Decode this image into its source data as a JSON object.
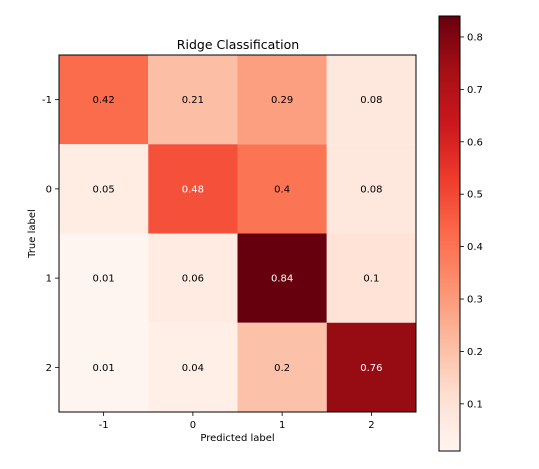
{
  "chart_data": {
    "type": "heatmap",
    "title": "Ridge Classification",
    "xlabel": "Predicted label",
    "ylabel": "True label",
    "x_categories": [
      "-1",
      "0",
      "1",
      "2"
    ],
    "y_categories": [
      "-1",
      "0",
      "1",
      "2"
    ],
    "matrix": [
      [
        0.42,
        0.21,
        0.29,
        0.08
      ],
      [
        0.05,
        0.48,
        0.4,
        0.08
      ],
      [
        0.01,
        0.06,
        0.84,
        0.1
      ],
      [
        0.01,
        0.04,
        0.2,
        0.76
      ]
    ],
    "cell_labels": [
      [
        "0.42",
        "0.21",
        "0.29",
        "0.08"
      ],
      [
        "0.05",
        "0.48",
        "0.4",
        "0.08"
      ],
      [
        "0.01",
        "0.06",
        "0.84",
        "0.1"
      ],
      [
        "0.01",
        "0.04",
        "0.2",
        "0.76"
      ]
    ],
    "colormap": "Reds",
    "colorbar": {
      "range": [
        0.01,
        0.84
      ],
      "ticks": [
        0.1,
        0.2,
        0.3,
        0.4,
        0.5,
        0.6,
        0.7,
        0.8
      ],
      "tick_labels": [
        "0.1",
        "0.2",
        "0.3",
        "0.4",
        "0.5",
        "0.6",
        "0.7",
        "0.8"
      ]
    },
    "grid": false
  }
}
